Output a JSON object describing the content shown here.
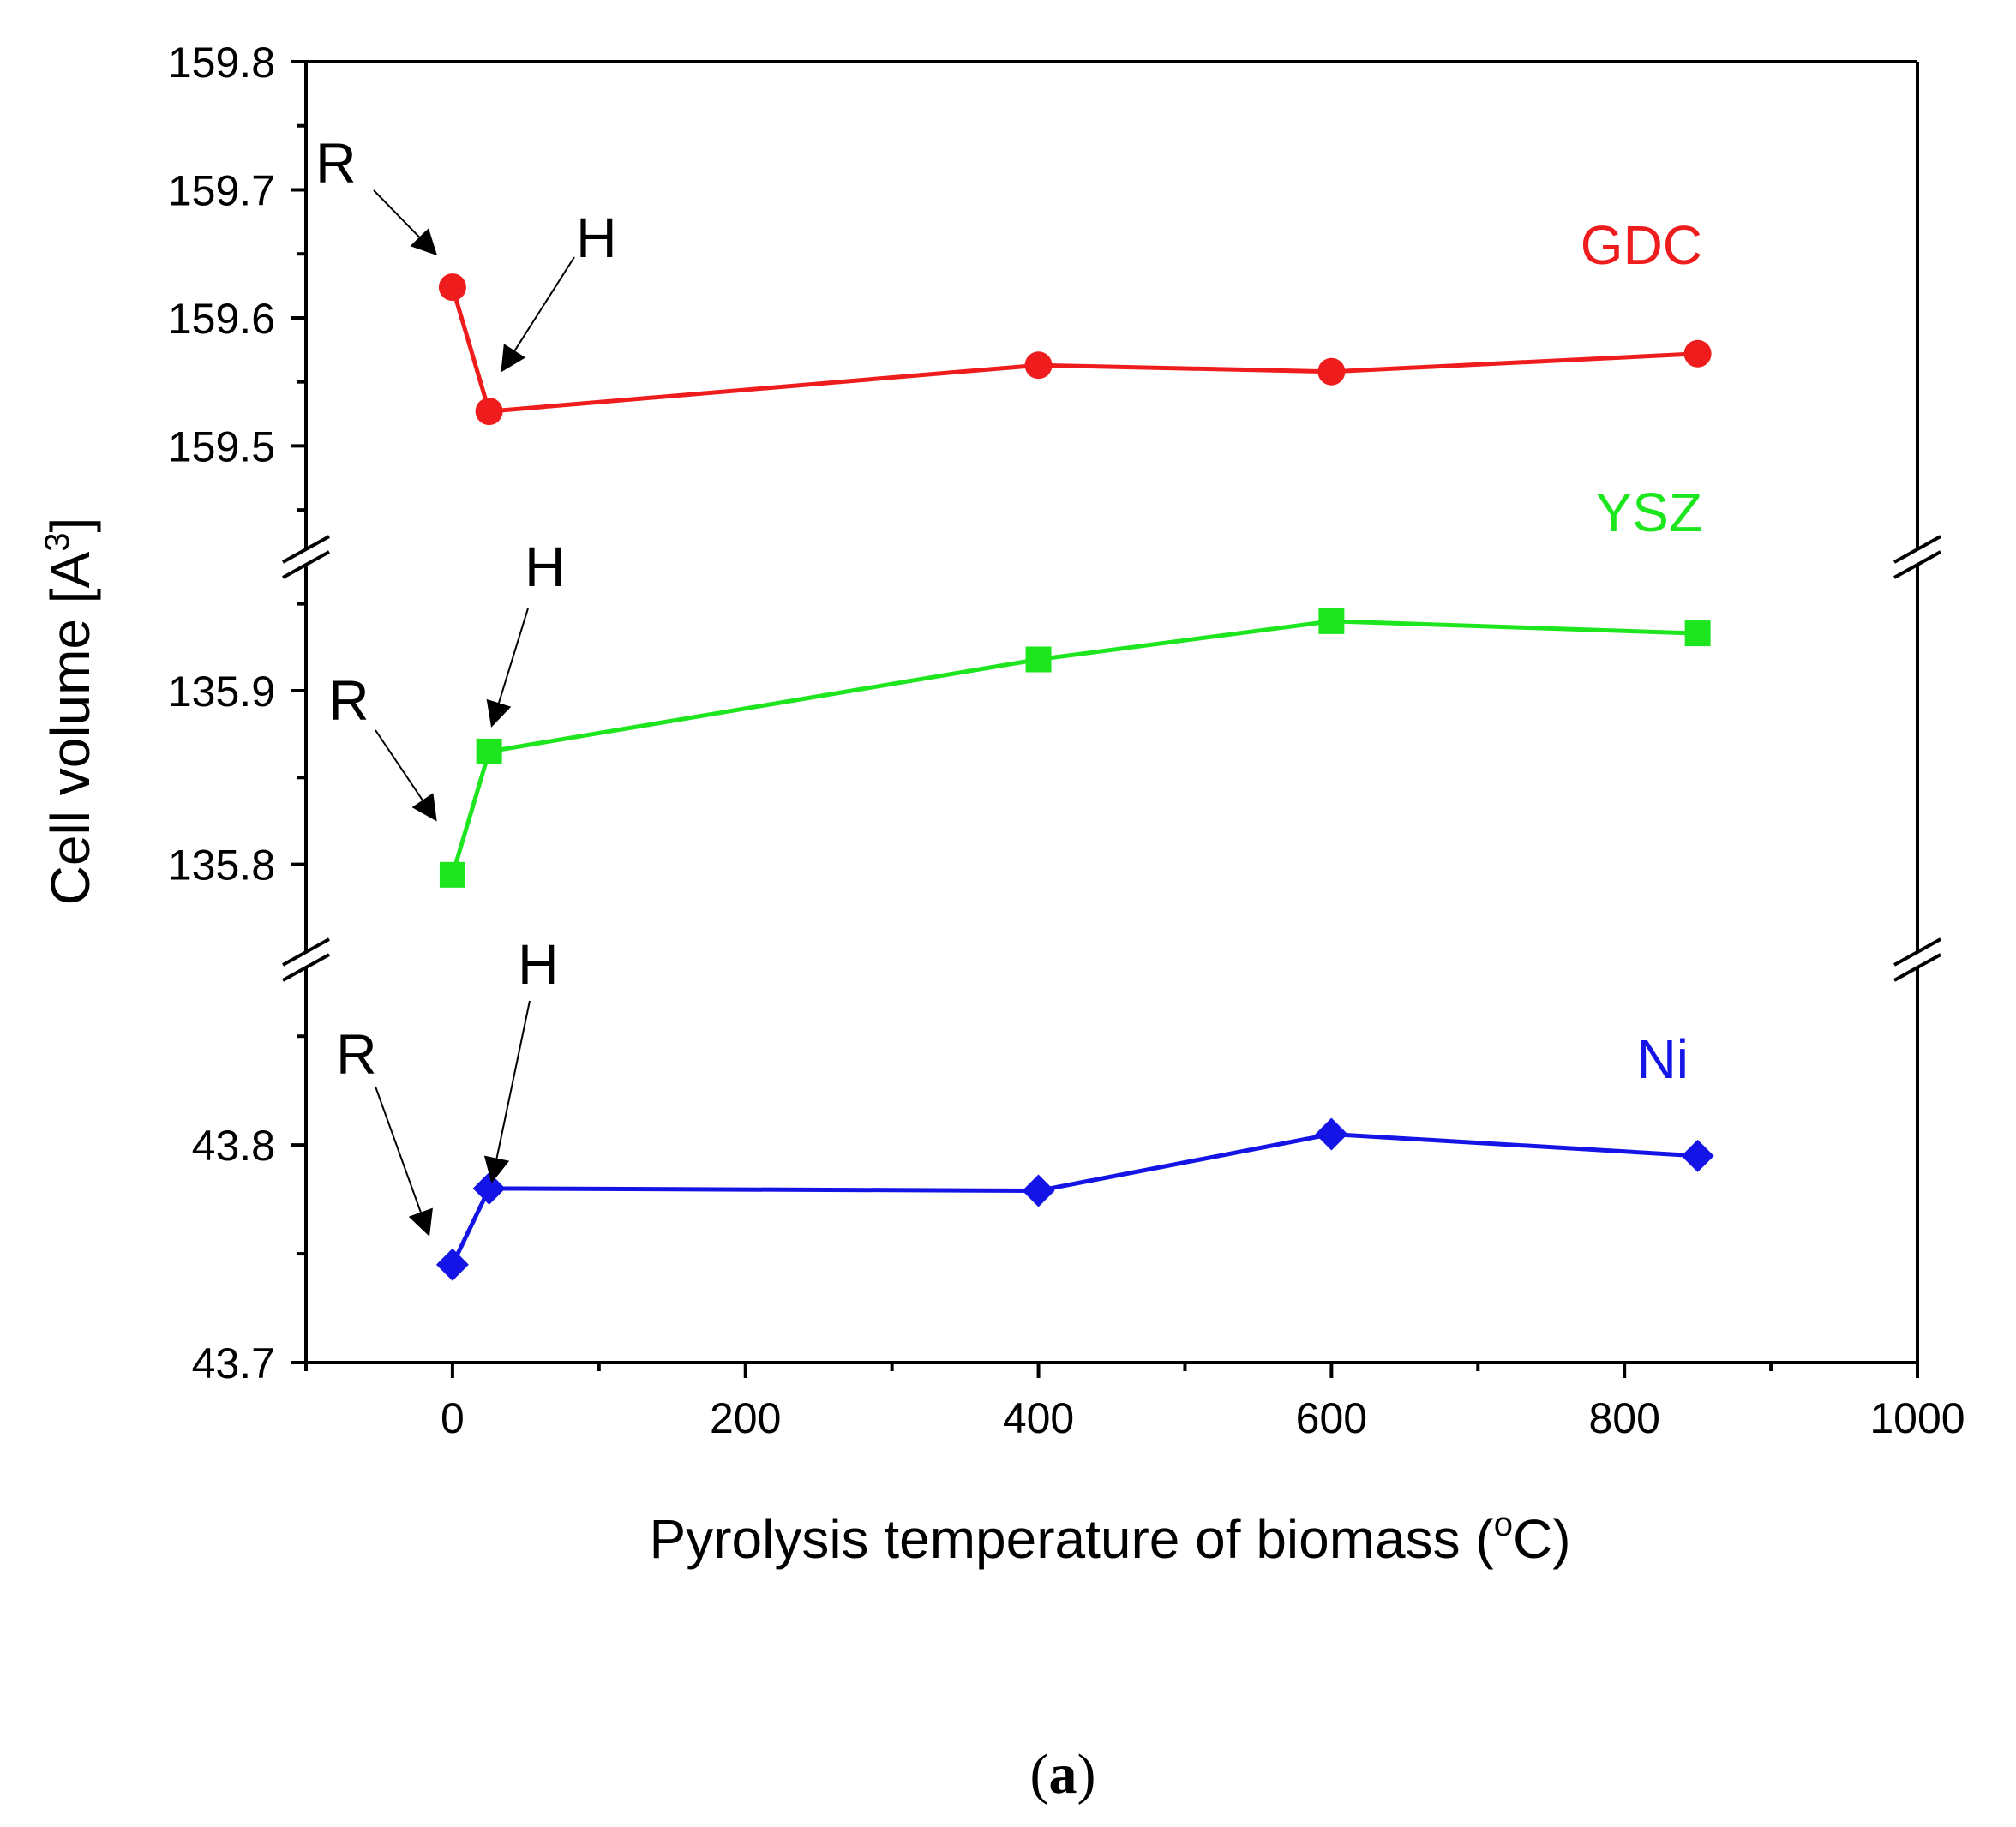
{
  "chart_data": {
    "type": "line",
    "xlabel": "Pyrolysis temperature of biomass (",
    "xlabel_sup": "o",
    "xlabel_end": "C)",
    "ylabel": "Cell volume [A",
    "ylabel_sup": "3",
    "ylabel_end": "]",
    "xlim": [
      -100,
      1000
    ],
    "x_ticks": [
      0,
      200,
      400,
      600,
      800,
      1000
    ],
    "x_tick_labels": [
      "0",
      "200",
      "400",
      "600",
      "800",
      "1000"
    ],
    "x": [
      0,
      25,
      400,
      600,
      850
    ],
    "series": [
      {
        "name": "GDC",
        "color": "#ee1c1c",
        "marker": "circle",
        "values": [
          159.624,
          159.527,
          159.563,
          159.558,
          159.572
        ],
        "panel_ylim": [
          159.42,
          159.8
        ],
        "y_ticks": [
          159.5,
          159.6,
          159.7,
          159.8
        ],
        "y_tick_labels": [
          "159.5",
          "159.6",
          "159.7",
          "159.8"
        ]
      },
      {
        "name": "YSZ",
        "color": "#1ee61e",
        "marker": "square",
        "values": [
          135.794,
          135.865,
          135.918,
          135.94,
          135.933
        ],
        "panel_ylim": [
          135.75,
          135.973
        ],
        "y_ticks": [
          135.8,
          135.9
        ],
        "y_tick_labels": [
          "135.8",
          "135.9"
        ]
      },
      {
        "name": "Ni",
        "color": "#1414e6",
        "marker": "diamond",
        "values": [
          43.745,
          43.78,
          43.779,
          43.805,
          43.795
        ],
        "panel_ylim": [
          43.7,
          43.882
        ],
        "y_ticks": [
          43.7,
          43.8
        ],
        "y_tick_labels": [
          "43.7",
          "43.8"
        ]
      }
    ],
    "annotations": {
      "r_label": "R",
      "h_label": "H"
    }
  },
  "caption": {
    "open": "(",
    "letter": "a",
    "close": ")"
  }
}
